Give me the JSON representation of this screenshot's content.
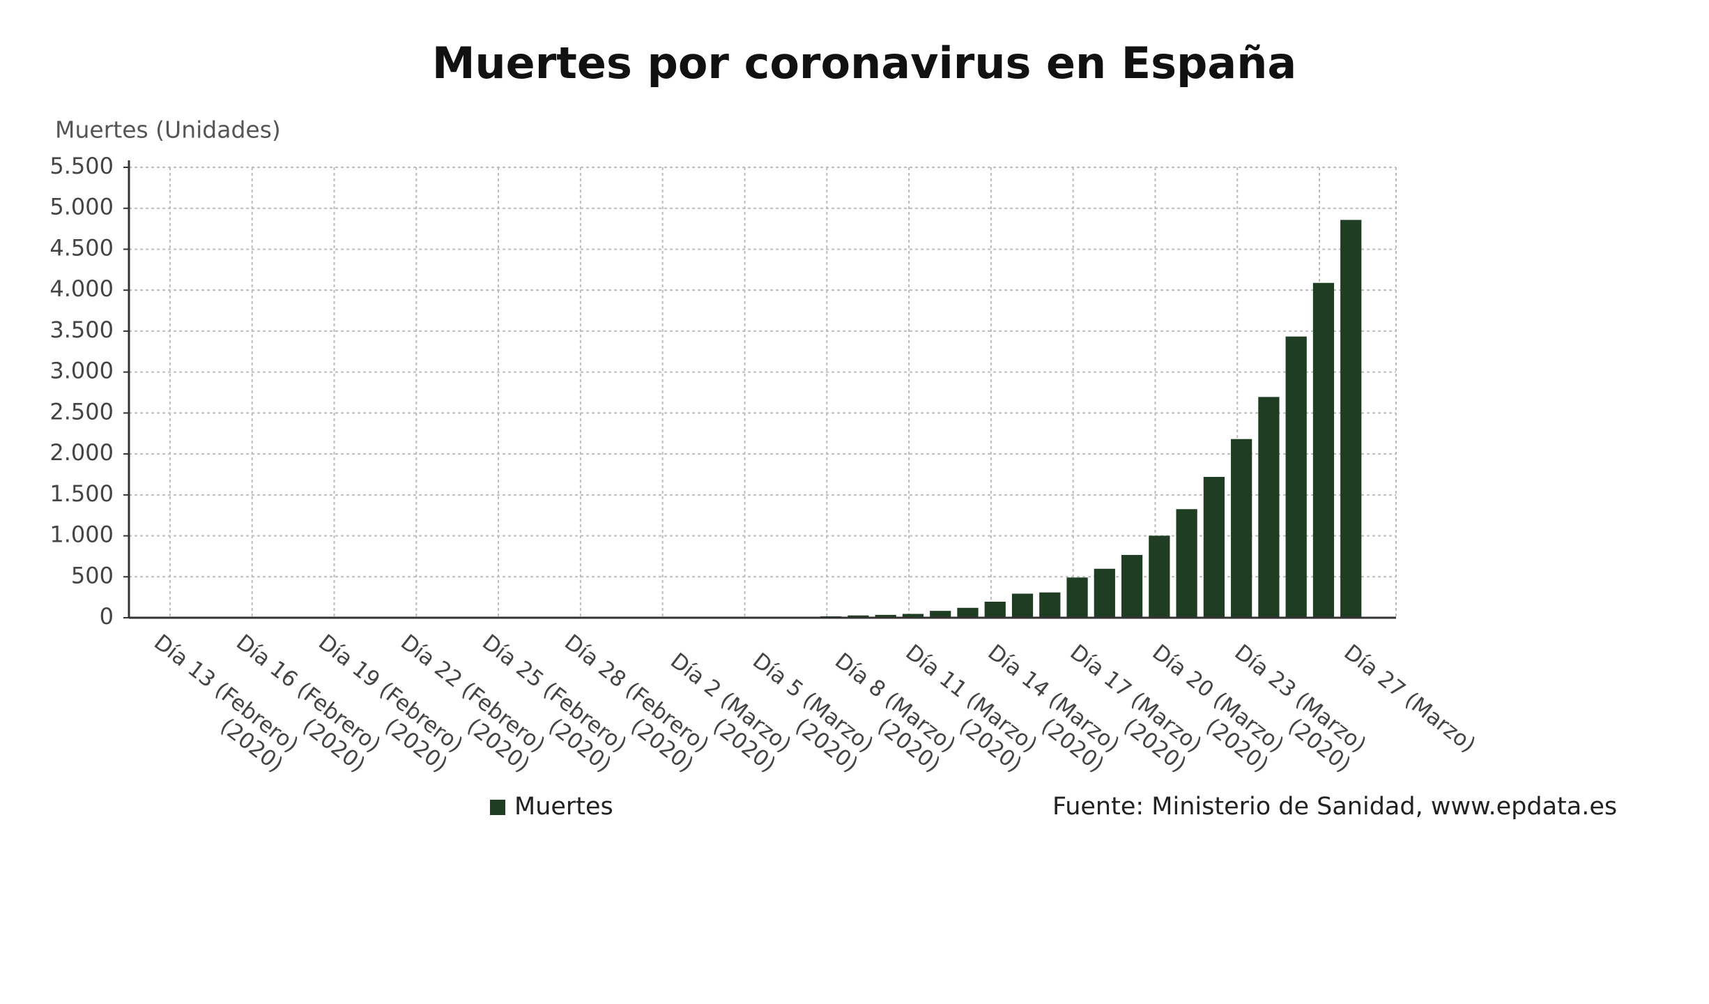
{
  "chart_data": {
    "type": "bar",
    "title": "Muertes por coronavirus en España",
    "y_label": "Muertes (Unidades)",
    "source": "Fuente: Ministerio de Sanidad, www.epdata.es",
    "categories": [
      "Día 13 (Febrero) (2020)",
      null,
      null,
      "Día 16 (Febrero) (2020)",
      null,
      null,
      "Día 19 (Febrero) (2020)",
      null,
      null,
      "Día 22 (Febrero) (2020)",
      null,
      null,
      "Día 25 (Febrero) (2020)",
      null,
      null,
      "Día 28 (Febrero) (2020)",
      null,
      null,
      "Día 2 (Marzo) (2020)",
      null,
      null,
      "Día 5 (Marzo) (2020)",
      null,
      null,
      "Día 8 (Marzo) (2020)",
      null,
      null,
      "Día 11 (Marzo) (2020)",
      null,
      null,
      "Día 14 (Marzo) (2020)",
      null,
      null,
      "Día 17 (Marzo) (2020)",
      null,
      null,
      "Día 20 (Marzo) (2020)",
      null,
      null,
      "Día 23 (Marzo) (2020)",
      null,
      null,
      null,
      "Día 27 (Marzo)"
    ],
    "series": [
      {
        "name": "Muertes",
        "color": "#1f3d22",
        "values": [
          0,
          0,
          0,
          0,
          0,
          0,
          0,
          0,
          0,
          0,
          0,
          0,
          0,
          0,
          0,
          0,
          0,
          0,
          0,
          1,
          2,
          3,
          5,
          10,
          17,
          28,
          35,
          47,
          84,
          121,
          196,
          294,
          309,
          491,
          598,
          767,
          1002,
          1326,
          1720,
          2182,
          2696,
          3434,
          4089,
          4858
        ]
      }
    ],
    "ylim": [
      0,
      5500
    ],
    "yticks": [
      0,
      {
        "value": 500,
        "label": "500"
      },
      {
        "value": 1000,
        "label": "1.000"
      },
      {
        "value": 1500,
        "label": "1.500"
      },
      {
        "value": 2000,
        "label": "2.000"
      },
      {
        "value": 2500,
        "label": "2.500"
      },
      {
        "value": 3000,
        "label": "3.000"
      },
      {
        "value": 3500,
        "label": "3.500"
      },
      {
        "value": 4000,
        "label": "4.000"
      },
      {
        "value": 4500,
        "label": "4.500"
      },
      {
        "value": 5000,
        "label": "5.000"
      },
      {
        "value": 5500,
        "label": "5.500"
      }
    ],
    "grid": true
  }
}
